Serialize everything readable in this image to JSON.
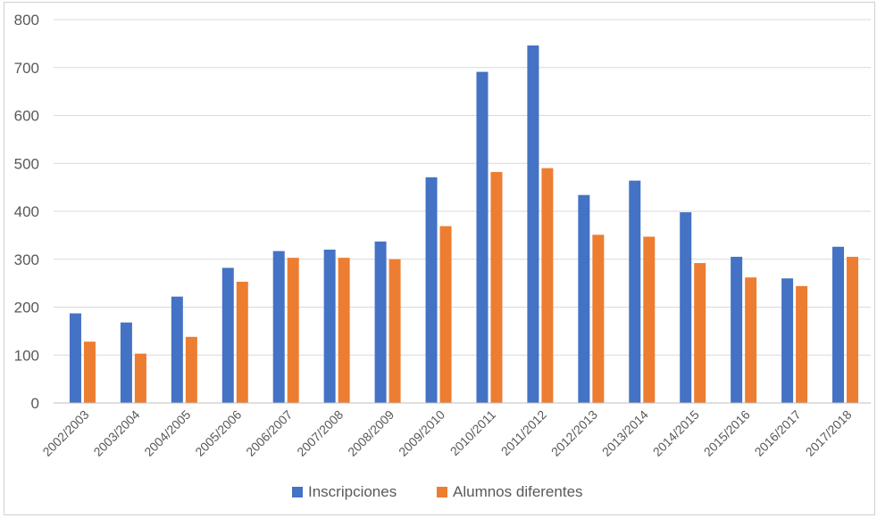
{
  "chart_data": {
    "type": "bar",
    "title": "",
    "xlabel": "",
    "ylabel": "",
    "ylim": [
      0,
      800
    ],
    "yticks": [
      0,
      100,
      200,
      300,
      400,
      500,
      600,
      700,
      800
    ],
    "grid": true,
    "legend_position": "bottom",
    "categories": [
      "2002/2003",
      "2003/2004",
      "2004/2005",
      "2005/2006",
      "2006/2007",
      "2007/2008",
      "2008/2009",
      "2009/2010",
      "2010/2011",
      "2011/2012",
      "2012/2013",
      "2013/2014",
      "2014/2015",
      "2015/2016",
      "2016/2017",
      "2017/2018"
    ],
    "series": [
      {
        "name": "Inscripciones",
        "color": "#4472C4",
        "values": [
          187,
          168,
          222,
          282,
          317,
          320,
          337,
          471,
          691,
          746,
          434,
          464,
          398,
          305,
          260,
          326
        ]
      },
      {
        "name": "Alumnos diferentes",
        "color": "#ED7D31",
        "values": [
          128,
          103,
          138,
          253,
          303,
          303,
          300,
          369,
          482,
          490,
          351,
          347,
          292,
          262,
          244,
          305
        ]
      }
    ]
  }
}
